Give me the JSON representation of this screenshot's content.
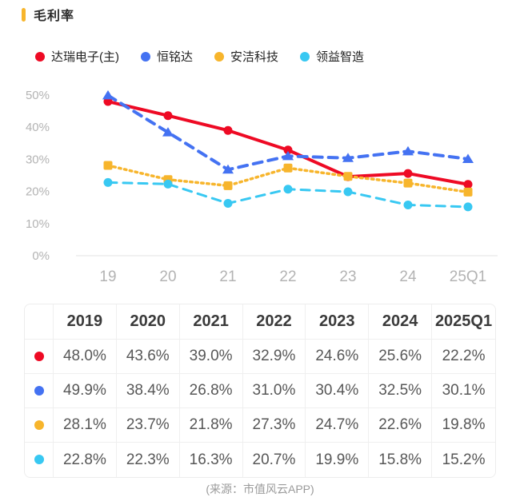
{
  "header": {
    "title": "毛利率",
    "accent_color": "#f7b52c"
  },
  "chart_data": {
    "type": "line",
    "x": [
      "19",
      "20",
      "21",
      "22",
      "23",
      "24",
      "25Q1"
    ],
    "categories": [
      "2019",
      "2020",
      "2021",
      "2022",
      "2023",
      "2024",
      "2025Q1"
    ],
    "series": [
      {
        "name": "达瑞电子(主)",
        "color": "#ee0a24",
        "line": "solid",
        "marker": "circle",
        "values": [
          48.0,
          43.6,
          39.0,
          32.9,
          24.6,
          25.6,
          22.2
        ]
      },
      {
        "name": "恒铭达",
        "color": "#4472f2",
        "line": "dashed",
        "marker": "triangle",
        "values": [
          49.9,
          38.4,
          26.8,
          31.0,
          30.4,
          32.5,
          30.1
        ]
      },
      {
        "name": "安洁科技",
        "color": "#f7b52c",
        "line": "dotted",
        "marker": "square",
        "values": [
          28.1,
          23.7,
          21.8,
          27.3,
          24.7,
          22.6,
          19.8
        ]
      },
      {
        "name": "领益智造",
        "color": "#38c8f2",
        "line": "dashed",
        "marker": "circle",
        "values": [
          22.8,
          22.3,
          16.3,
          20.7,
          19.9,
          15.8,
          15.2
        ]
      }
    ],
    "title": "毛利率",
    "xlabel": "",
    "ylabel": "",
    "ylim": [
      0,
      50
    ],
    "y_ticks": [
      "0%",
      "10%",
      "20%",
      "30%",
      "40%",
      "50%"
    ],
    "grid": false,
    "legend_position": "top",
    "axis_label_color": "#b3b3b3",
    "axis_line_color": "#e3e3e3"
  },
  "table": {
    "columns": [
      "2019",
      "2020",
      "2021",
      "2022",
      "2023",
      "2024",
      "2025Q1"
    ],
    "rows": [
      {
        "series": "达瑞电子(主)",
        "color": "#ee0a24",
        "values": [
          "48.0%",
          "43.6%",
          "39.0%",
          "32.9%",
          "24.6%",
          "25.6%",
          "22.2%"
        ]
      },
      {
        "series": "恒铭达",
        "color": "#4472f2",
        "values": [
          "49.9%",
          "38.4%",
          "26.8%",
          "31.0%",
          "30.4%",
          "32.5%",
          "30.1%"
        ]
      },
      {
        "series": "安洁科技",
        "color": "#f7b52c",
        "values": [
          "28.1%",
          "23.7%",
          "21.8%",
          "27.3%",
          "24.7%",
          "22.6%",
          "19.8%"
        ]
      },
      {
        "series": "领益智造",
        "color": "#38c8f2",
        "values": [
          "22.8%",
          "22.3%",
          "16.3%",
          "20.7%",
          "19.9%",
          "15.8%",
          "15.2%"
        ]
      }
    ]
  },
  "footer": {
    "source": "(来源：市值风云APP)"
  }
}
